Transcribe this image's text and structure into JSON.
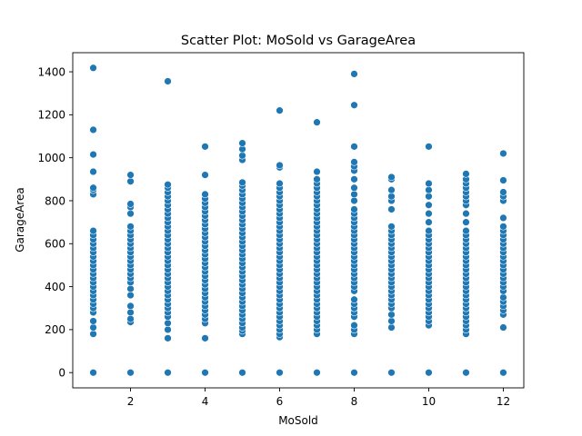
{
  "chart_data": {
    "type": "scatter",
    "title": "Scatter Plot: MoSold vs GarageArea",
    "xlabel": "MoSold",
    "ylabel": "GarageArea",
    "xlim": [
      0.45,
      12.55
    ],
    "ylim": [
      -71,
      1489
    ],
    "xticks": [
      2,
      4,
      6,
      8,
      10,
      12
    ],
    "yticks": [
      0,
      200,
      400,
      600,
      800,
      1000,
      1200,
      1400
    ],
    "legend": "none",
    "grid": false,
    "marker_color": "#1f77b4",
    "points_by_month": {
      "1": [
        0,
        180,
        210,
        240,
        280,
        300,
        320,
        340,
        360,
        380,
        400,
        420,
        440,
        460,
        480,
        500,
        520,
        540,
        560,
        580,
        600,
        620,
        640,
        660,
        830,
        850,
        860,
        935,
        1015,
        1130,
        1418
      ],
      "2": [
        0,
        235,
        250,
        280,
        310,
        360,
        390,
        420,
        440,
        460,
        480,
        500,
        520,
        540,
        560,
        580,
        600,
        620,
        640,
        660,
        680,
        740,
        770,
        785,
        890,
        920
      ],
      "3": [
        0,
        160,
        200,
        230,
        260,
        280,
        300,
        320,
        340,
        360,
        380,
        400,
        420,
        440,
        460,
        480,
        500,
        520,
        540,
        560,
        580,
        600,
        620,
        640,
        660,
        680,
        700,
        720,
        740,
        760,
        780,
        800,
        820,
        840,
        860,
        875,
        1356
      ],
      "4": [
        0,
        160,
        230,
        250,
        270,
        290,
        310,
        330,
        350,
        370,
        390,
        410,
        430,
        450,
        470,
        490,
        510,
        530,
        550,
        570,
        590,
        610,
        630,
        650,
        670,
        690,
        710,
        730,
        750,
        770,
        790,
        810,
        830,
        920,
        1052
      ],
      "5": [
        0,
        180,
        195,
        210,
        230,
        250,
        270,
        290,
        310,
        330,
        350,
        370,
        390,
        410,
        430,
        450,
        470,
        490,
        510,
        530,
        550,
        570,
        590,
        610,
        630,
        650,
        670,
        690,
        710,
        730,
        750,
        770,
        790,
        810,
        830,
        850,
        870,
        885,
        990,
        1010,
        1040,
        1068
      ],
      "6": [
        0,
        165,
        180,
        200,
        220,
        240,
        260,
        280,
        300,
        320,
        340,
        360,
        380,
        400,
        420,
        440,
        460,
        480,
        500,
        520,
        540,
        560,
        580,
        600,
        620,
        640,
        660,
        680,
        700,
        720,
        740,
        760,
        780,
        800,
        820,
        840,
        860,
        880,
        955,
        965,
        1220
      ],
      "7": [
        0,
        180,
        200,
        220,
        240,
        260,
        280,
        300,
        320,
        340,
        360,
        380,
        400,
        420,
        440,
        460,
        480,
        500,
        520,
        540,
        560,
        580,
        600,
        620,
        640,
        660,
        680,
        700,
        720,
        740,
        760,
        780,
        800,
        820,
        840,
        860,
        880,
        900,
        935,
        1165
      ],
      "8": [
        0,
        180,
        200,
        220,
        260,
        280,
        300,
        320,
        340,
        380,
        400,
        420,
        440,
        460,
        480,
        500,
        520,
        540,
        560,
        580,
        600,
        620,
        640,
        660,
        680,
        700,
        720,
        740,
        760,
        800,
        830,
        860,
        900,
        940,
        960,
        980,
        1052,
        1245,
        1390
      ],
      "9": [
        0,
        210,
        240,
        270,
        300,
        320,
        340,
        360,
        380,
        400,
        420,
        440,
        460,
        480,
        500,
        520,
        540,
        560,
        580,
        600,
        620,
        640,
        660,
        680,
        760,
        800,
        820,
        850,
        900,
        910
      ],
      "10": [
        0,
        220,
        240,
        260,
        280,
        300,
        320,
        340,
        360,
        380,
        400,
        420,
        440,
        460,
        480,
        500,
        520,
        540,
        560,
        580,
        600,
        620,
        640,
        660,
        700,
        740,
        780,
        820,
        850,
        880,
        1052
      ],
      "11": [
        0,
        180,
        200,
        220,
        240,
        260,
        280,
        300,
        320,
        340,
        360,
        380,
        400,
        420,
        440,
        460,
        480,
        500,
        520,
        540,
        560,
        580,
        600,
        620,
        640,
        660,
        700,
        740,
        780,
        800,
        820,
        840,
        860,
        880,
        900,
        925
      ],
      "12": [
        0,
        210,
        270,
        290,
        310,
        330,
        350,
        380,
        400,
        420,
        440,
        460,
        480,
        500,
        520,
        540,
        560,
        580,
        600,
        620,
        640,
        660,
        680,
        720,
        800,
        820,
        840,
        895,
        1020
      ]
    }
  }
}
